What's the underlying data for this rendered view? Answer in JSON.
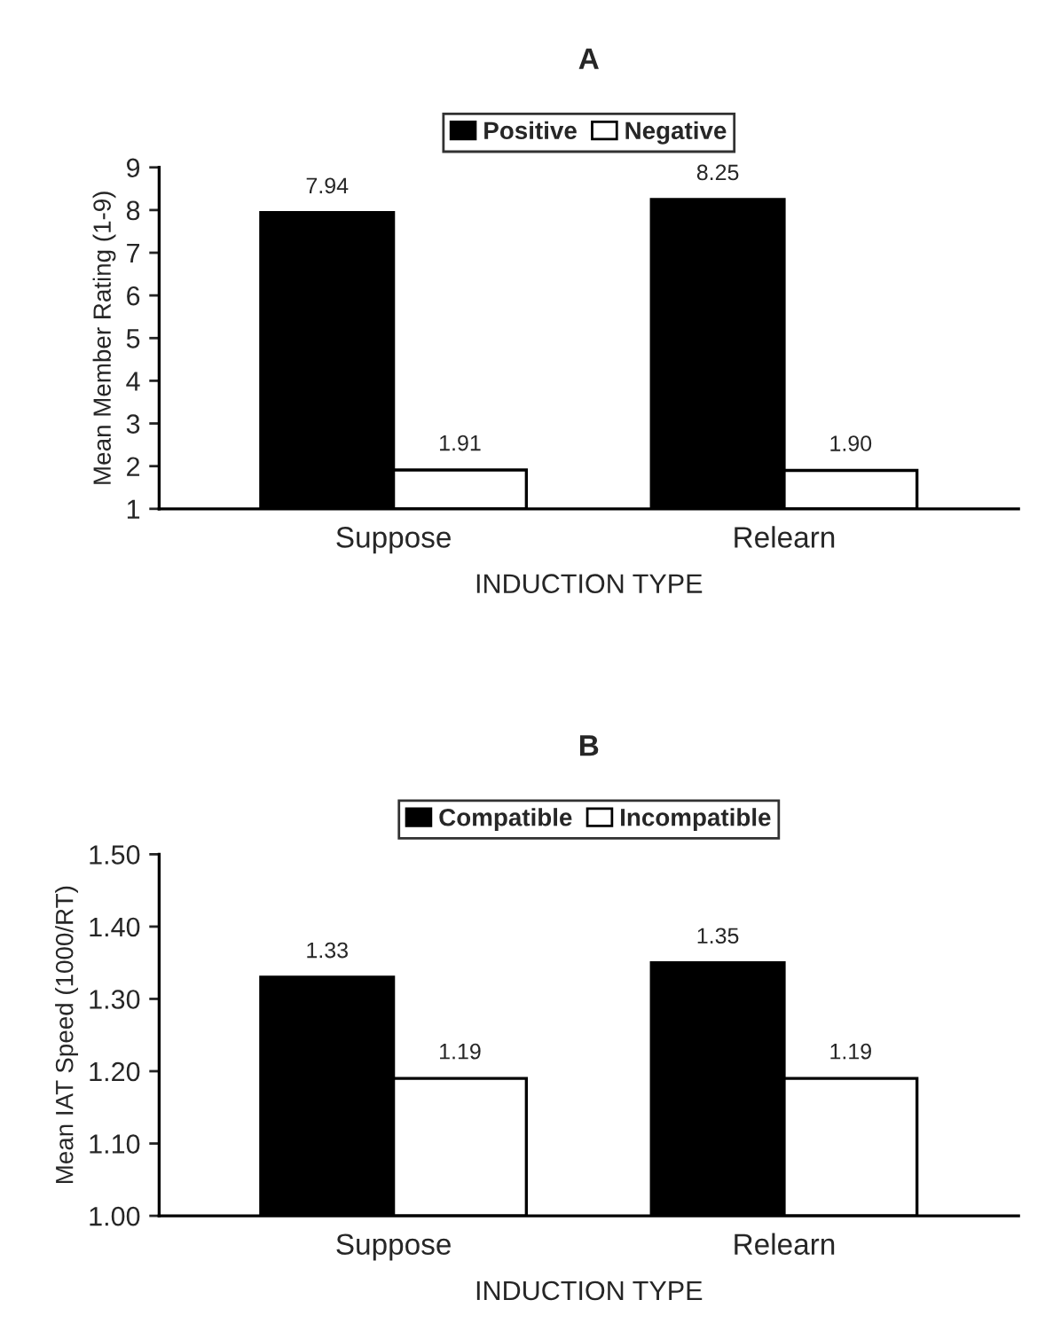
{
  "chart_data": [
    {
      "type": "bar",
      "title": "A",
      "xlabel": "INDUCTION TYPE",
      "ylabel": "Mean Member Rating (1-9)",
      "categories": [
        "Suppose",
        "Relearn"
      ],
      "series": [
        {
          "name": "Positive",
          "color": "#000000",
          "values": [
            7.94,
            8.25
          ],
          "value_labels": [
            "7.94",
            "8.25"
          ]
        },
        {
          "name": "Negative",
          "color": "#ffffff",
          "values": [
            1.91,
            1.9
          ],
          "value_labels": [
            "1.91",
            "1.90"
          ]
        }
      ],
      "ylim": [
        1,
        9
      ],
      "yticks": [
        1,
        2,
        3,
        4,
        5,
        6,
        7,
        8,
        9
      ],
      "grid": false,
      "legend": "top"
    },
    {
      "type": "bar",
      "title": "B",
      "xlabel": "INDUCTION TYPE",
      "ylabel": "Mean IAT Speed (1000/RT)",
      "categories": [
        "Suppose",
        "Relearn"
      ],
      "series": [
        {
          "name": "Compatible",
          "color": "#000000",
          "values": [
            1.33,
            1.35
          ],
          "value_labels": [
            "1.33",
            "1.35"
          ]
        },
        {
          "name": "Incompatible",
          "color": "#ffffff",
          "values": [
            1.19,
            1.19
          ],
          "value_labels": [
            "1.19",
            "1.19"
          ]
        }
      ],
      "ylim": [
        1.0,
        1.5
      ],
      "yticks": [
        {
          "value": 1.0,
          "label": "1.00"
        },
        {
          "value": 1.1,
          "label": "1.10"
        },
        {
          "value": 1.2,
          "label": "1.20"
        },
        {
          "value": 1.3,
          "label": "1.30"
        },
        {
          "value": 1.4,
          "label": "1.40"
        },
        {
          "value": 1.5,
          "label": "1.50"
        }
      ],
      "grid": false,
      "legend": "top"
    }
  ]
}
